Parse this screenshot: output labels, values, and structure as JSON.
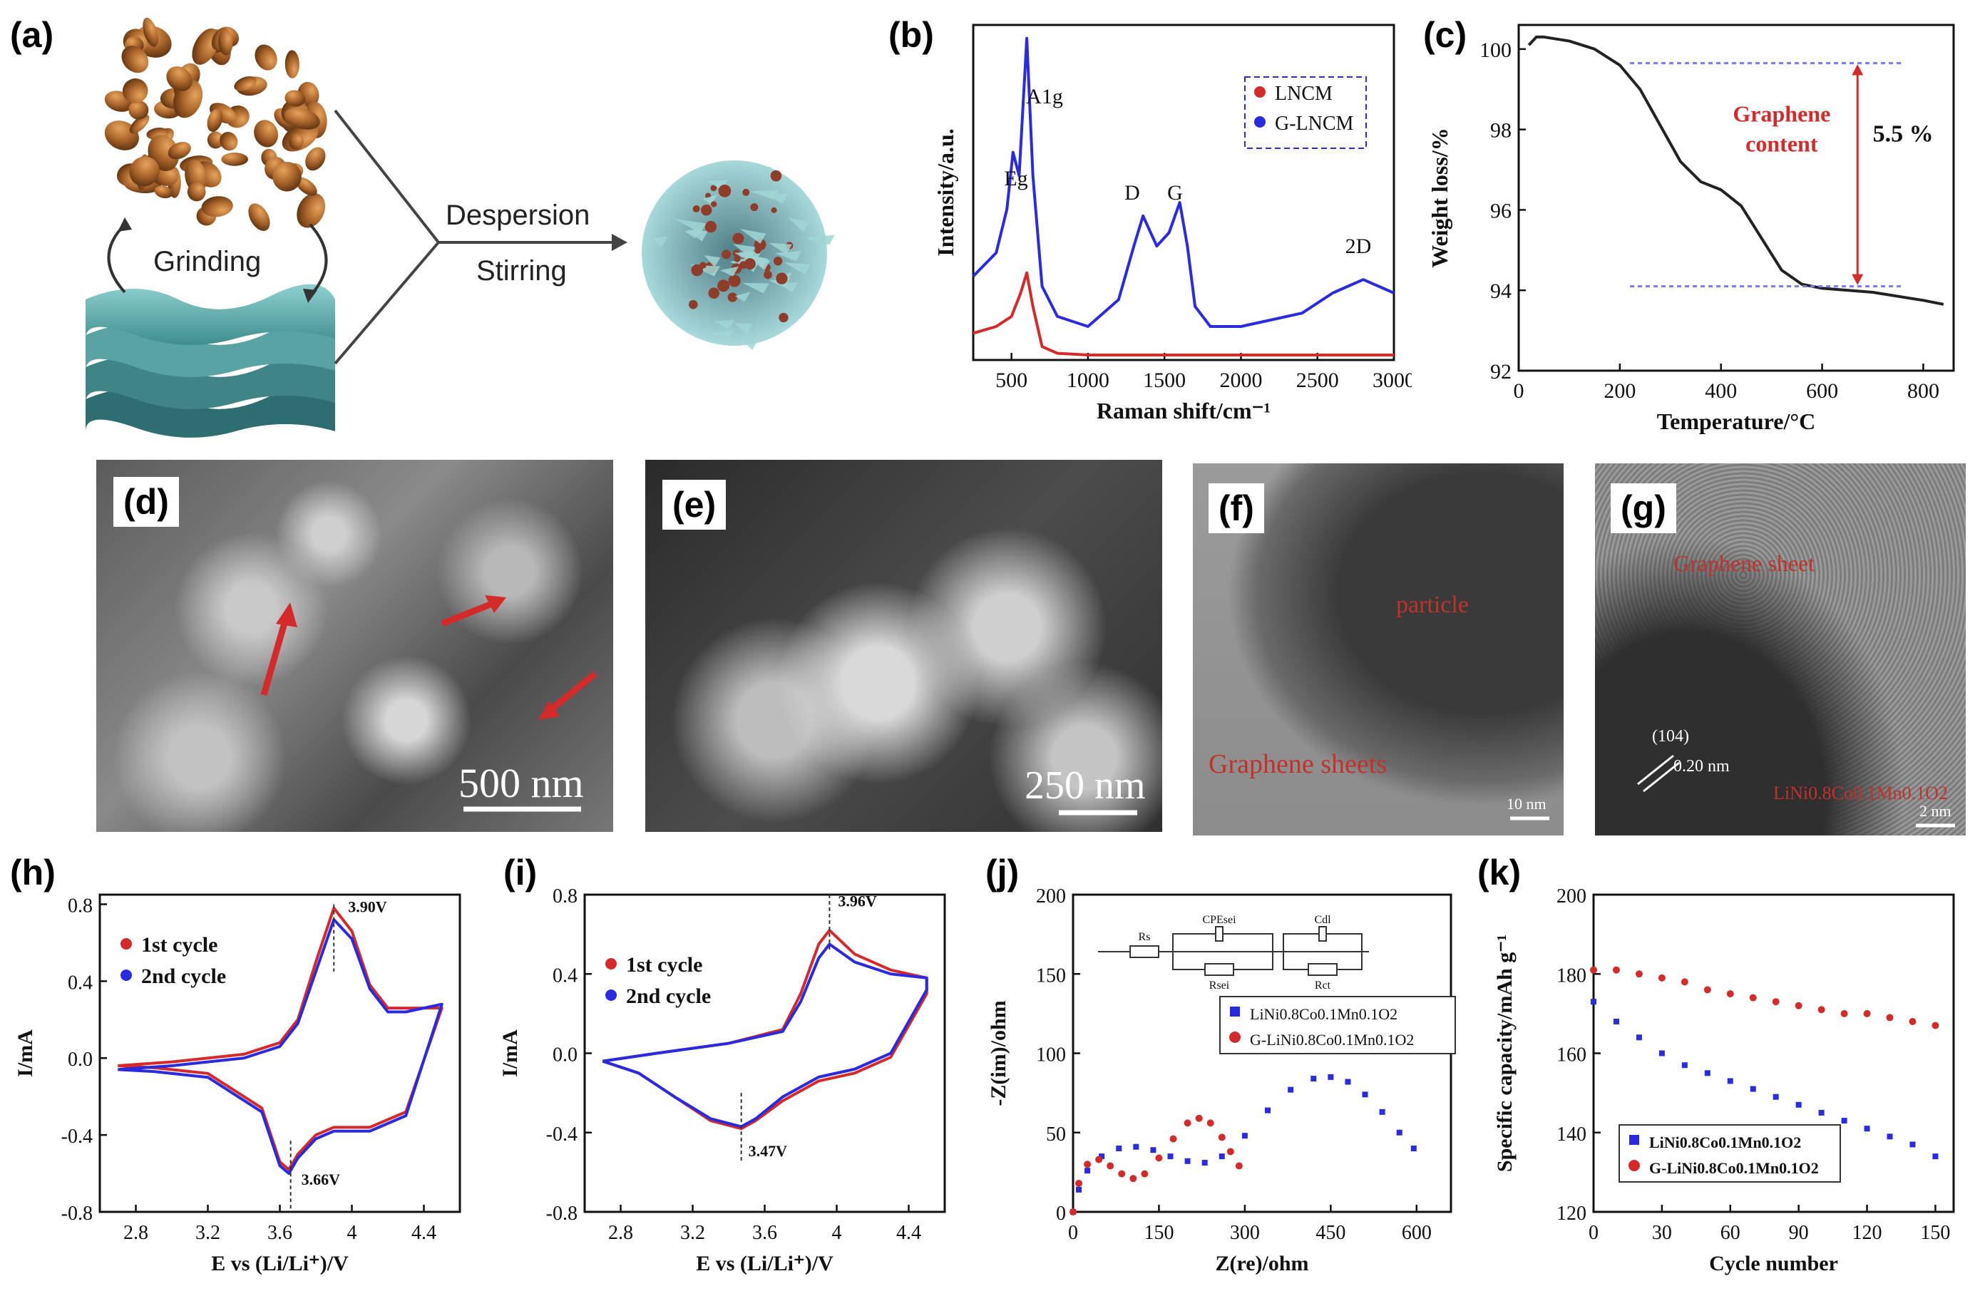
{
  "panels": {
    "a": {
      "label": "(a)",
      "grinding": "Grinding",
      "dispersion": "Despersion",
      "stirring": "Stirring"
    },
    "d": {
      "label": "(d)",
      "scale": "500 nm"
    },
    "e": {
      "label": "(e)",
      "scale": "250 nm"
    },
    "f": {
      "label": "(f)",
      "scale": "10 nm",
      "text_graphene": "Graphene sheets",
      "text_particle": "particle"
    },
    "g": {
      "label": "(g)",
      "scale": "2 nm",
      "text_graphene": "Graphene sheet",
      "text_plane": "(104)",
      "text_dspacing": "0.20 nm",
      "text_material": "LiNi0.8Co0.1Mn0.1O2"
    }
  },
  "colors": {
    "red": "#d42a2a",
    "blue": "#2a2ae0",
    "black": "#222222",
    "dashed": "#7a7aee"
  },
  "chart_data": [
    {
      "id": "b",
      "label": "(b)",
      "type": "line",
      "title": "",
      "xlabel": "Raman shift/cm⁻¹",
      "ylabel": "Intensity/a.u.",
      "xlim": [
        250,
        3000
      ],
      "ylim": [
        0,
        1.0
      ],
      "xticks": [
        500,
        1000,
        1500,
        2000,
        2500,
        3000
      ],
      "legend": [
        "LNCM",
        "G-LNCM"
      ],
      "legend_position": "top-right",
      "annotations": [
        "Eg",
        "A1g",
        "D",
        "G",
        "2D"
      ],
      "series": [
        {
          "name": "LNCM",
          "color": "red",
          "x": [
            250,
            400,
            500,
            560,
            600,
            640,
            700,
            800,
            1000,
            1500,
            2000,
            2500,
            3000
          ],
          "y": [
            0.08,
            0.1,
            0.13,
            0.2,
            0.26,
            0.16,
            0.04,
            0.02,
            0.015,
            0.015,
            0.015,
            0.015,
            0.015
          ]
        },
        {
          "name": "G-LNCM",
          "color": "blue",
          "x": [
            250,
            400,
            470,
            510,
            550,
            600,
            640,
            700,
            800,
            1000,
            1200,
            1300,
            1360,
            1450,
            1530,
            1600,
            1650,
            1700,
            1800,
            2000,
            2400,
            2600,
            2800,
            3000
          ],
          "y": [
            0.25,
            0.32,
            0.45,
            0.62,
            0.55,
            0.96,
            0.55,
            0.22,
            0.13,
            0.1,
            0.18,
            0.34,
            0.43,
            0.34,
            0.38,
            0.47,
            0.34,
            0.16,
            0.1,
            0.1,
            0.14,
            0.2,
            0.24,
            0.2
          ]
        }
      ]
    },
    {
      "id": "c",
      "label": "(c)",
      "type": "line",
      "title": "",
      "xlabel": "Temperature/°C",
      "ylabel": "Weight loss/%",
      "xlim": [
        0,
        860
      ],
      "ylim": [
        92,
        100.6
      ],
      "xticks": [
        0,
        200,
        400,
        600,
        800
      ],
      "yticks": [
        92,
        94,
        96,
        98,
        100
      ],
      "annotations": [
        "Graphene content",
        "5.5 %"
      ],
      "reference_lines": [
        99.65,
        94.1
      ],
      "series": [
        {
          "name": "",
          "color": "black",
          "x": [
            20,
            35,
            50,
            100,
            150,
            200,
            240,
            280,
            320,
            360,
            400,
            440,
            480,
            520,
            560,
            600,
            700,
            800,
            840
          ],
          "y": [
            100.1,
            100.3,
            100.3,
            100.2,
            100.0,
            99.6,
            99.0,
            98.1,
            97.2,
            96.7,
            96.5,
            96.1,
            95.3,
            94.5,
            94.15,
            94.05,
            93.95,
            93.75,
            93.65
          ]
        }
      ]
    },
    {
      "id": "h",
      "label": "(h)",
      "type": "line",
      "title": "",
      "xlabel": "E vs (Li/Li⁺)/V",
      "ylabel": "I/mA",
      "xlim": [
        2.6,
        4.6
      ],
      "ylim": [
        -0.8,
        0.85
      ],
      "xticks": [
        2.8,
        3.2,
        3.6,
        4.0,
        4.4
      ],
      "yticks": [
        -0.8,
        -0.4,
        0.0,
        0.4,
        0.8
      ],
      "legend": [
        "1st cycle",
        "2nd cycle"
      ],
      "legend_position": "top-left",
      "annotations": [
        "3.90V",
        "3.66V"
      ],
      "series": [
        {
          "name": "1st cycle",
          "color": "red",
          "x": [
            2.7,
            3.0,
            3.4,
            3.6,
            3.7,
            3.8,
            3.9,
            4.0,
            4.1,
            4.2,
            4.3,
            4.5,
            4.5,
            4.3,
            4.1,
            3.9,
            3.8,
            3.7,
            3.65,
            3.6,
            3.5,
            3.2,
            2.9,
            2.7
          ],
          "y": [
            -0.04,
            -0.02,
            0.02,
            0.08,
            0.2,
            0.5,
            0.78,
            0.66,
            0.38,
            0.26,
            0.26,
            0.26,
            0.26,
            -0.28,
            -0.36,
            -0.36,
            -0.4,
            -0.5,
            -0.58,
            -0.54,
            -0.26,
            -0.08,
            -0.05,
            -0.04
          ]
        },
        {
          "name": "2nd cycle",
          "color": "blue",
          "x": [
            2.7,
            3.0,
            3.4,
            3.6,
            3.7,
            3.8,
            3.9,
            4.0,
            4.1,
            4.2,
            4.3,
            4.5,
            4.5,
            4.3,
            4.1,
            3.9,
            3.8,
            3.7,
            3.65,
            3.6,
            3.5,
            3.2,
            2.9,
            2.7
          ],
          "y": [
            -0.06,
            -0.04,
            0.0,
            0.06,
            0.18,
            0.45,
            0.72,
            0.62,
            0.36,
            0.24,
            0.24,
            0.28,
            0.28,
            -0.3,
            -0.38,
            -0.38,
            -0.42,
            -0.52,
            -0.6,
            -0.56,
            -0.28,
            -0.1,
            -0.07,
            -0.06
          ]
        }
      ]
    },
    {
      "id": "i",
      "label": "(i)",
      "type": "line",
      "title": "",
      "xlabel": "E vs (Li/Li⁺)/V",
      "ylabel": "I/mA",
      "xlim": [
        2.6,
        4.6
      ],
      "ylim": [
        -0.8,
        0.8
      ],
      "xticks": [
        2.8,
        3.2,
        3.6,
        4.0,
        4.4
      ],
      "yticks": [
        -0.8,
        -0.4,
        0.0,
        0.4,
        0.8
      ],
      "legend": [
        "1st cycle",
        "2nd cycle"
      ],
      "legend_position": "top-left",
      "annotations": [
        "3.96V",
        "3.47V"
      ],
      "series": [
        {
          "name": "1st cycle",
          "color": "red",
          "x": [
            2.7,
            3.0,
            3.4,
            3.7,
            3.8,
            3.9,
            3.96,
            4.1,
            4.3,
            4.5,
            4.5,
            4.3,
            4.1,
            3.9,
            3.7,
            3.55,
            3.47,
            3.3,
            3.1,
            2.9,
            2.7
          ],
          "y": [
            -0.04,
            0.0,
            0.05,
            0.12,
            0.3,
            0.55,
            0.62,
            0.5,
            0.42,
            0.38,
            0.3,
            -0.02,
            -0.1,
            -0.14,
            -0.24,
            -0.34,
            -0.38,
            -0.34,
            -0.22,
            -0.1,
            -0.04
          ]
        },
        {
          "name": "2nd cycle",
          "color": "blue",
          "x": [
            2.7,
            3.0,
            3.4,
            3.7,
            3.8,
            3.9,
            3.96,
            4.1,
            4.3,
            4.5,
            4.5,
            4.3,
            4.1,
            3.9,
            3.7,
            3.55,
            3.47,
            3.3,
            3.1,
            2.9,
            2.7
          ],
          "y": [
            -0.04,
            0.0,
            0.05,
            0.11,
            0.26,
            0.48,
            0.55,
            0.46,
            0.4,
            0.38,
            0.32,
            0.0,
            -0.08,
            -0.12,
            -0.22,
            -0.33,
            -0.37,
            -0.33,
            -0.22,
            -0.1,
            -0.04
          ]
        }
      ]
    },
    {
      "id": "j",
      "label": "(j)",
      "type": "scatter",
      "title": "",
      "xlabel": "Z(re)/ohm",
      "ylabel": "-Z(im)/ohm",
      "xlim": [
        0,
        660
      ],
      "ylim": [
        0,
        200
      ],
      "xticks": [
        0,
        150,
        300,
        450,
        600
      ],
      "yticks": [
        0,
        50,
        100,
        150,
        200
      ],
      "legend": [
        "LiNi0.8Co0.1Mn0.1O2",
        "G-LiNi0.8Co0.1Mn0.1O2"
      ],
      "legend_position": "center-right",
      "annotations": [
        "Rs",
        "CPEsei",
        "Rsei",
        "Cdl",
        "Rct"
      ],
      "series": [
        {
          "name": "LiNi0.8Co0.1Mn0.1O2",
          "color": "blue",
          "x": [
            0,
            10,
            25,
            50,
            80,
            110,
            140,
            170,
            200,
            230,
            260,
            300,
            340,
            380,
            420,
            450,
            480,
            510,
            540,
            570,
            595
          ],
          "y": [
            0,
            14,
            26,
            35,
            40,
            41,
            39,
            35,
            32,
            31,
            35,
            48,
            64,
            77,
            84,
            85,
            82,
            74,
            63,
            50,
            40
          ]
        },
        {
          "name": "G-LiNi0.8Co0.1Mn0.1O2",
          "color": "red",
          "x": [
            0,
            10,
            25,
            45,
            65,
            85,
            105,
            125,
            150,
            175,
            200,
            220,
            240,
            260,
            275,
            290
          ],
          "y": [
            0,
            18,
            30,
            33,
            29,
            24,
            21,
            24,
            34,
            46,
            56,
            59,
            56,
            47,
            38,
            29
          ]
        }
      ]
    },
    {
      "id": "k",
      "label": "(k)",
      "type": "scatter",
      "title": "",
      "xlabel": "Cycle number",
      "ylabel": "Specific capacity/mAh g⁻¹",
      "xlim": [
        0,
        158
      ],
      "ylim": [
        120,
        200
      ],
      "xticks": [
        0,
        30,
        60,
        90,
        120,
        150
      ],
      "yticks": [
        120,
        140,
        160,
        180,
        200
      ],
      "legend": [
        "LiNi0.8Co0.1Mn0.1O2",
        "G-LiNi0.8Co0.1Mn0.1O2"
      ],
      "legend_position": "bottom-left",
      "series": [
        {
          "name": "LiNi0.8Co0.1Mn0.1O2",
          "color": "blue",
          "x": [
            0,
            10,
            20,
            30,
            40,
            50,
            60,
            70,
            80,
            90,
            100,
            110,
            120,
            130,
            140,
            150
          ],
          "y": [
            173,
            168,
            164,
            160,
            157,
            155,
            153,
            151,
            149,
            147,
            145,
            143,
            141,
            139,
            137,
            134
          ]
        },
        {
          "name": "G-LiNi0.8Co0.1Mn0.1O2",
          "color": "red",
          "x": [
            0,
            10,
            20,
            30,
            40,
            50,
            60,
            70,
            80,
            90,
            100,
            110,
            120,
            130,
            140,
            150
          ],
          "y": [
            181,
            181,
            180,
            179,
            178,
            176,
            175,
            174,
            173,
            172,
            171,
            170,
            170,
            169,
            168,
            167
          ]
        }
      ]
    }
  ]
}
